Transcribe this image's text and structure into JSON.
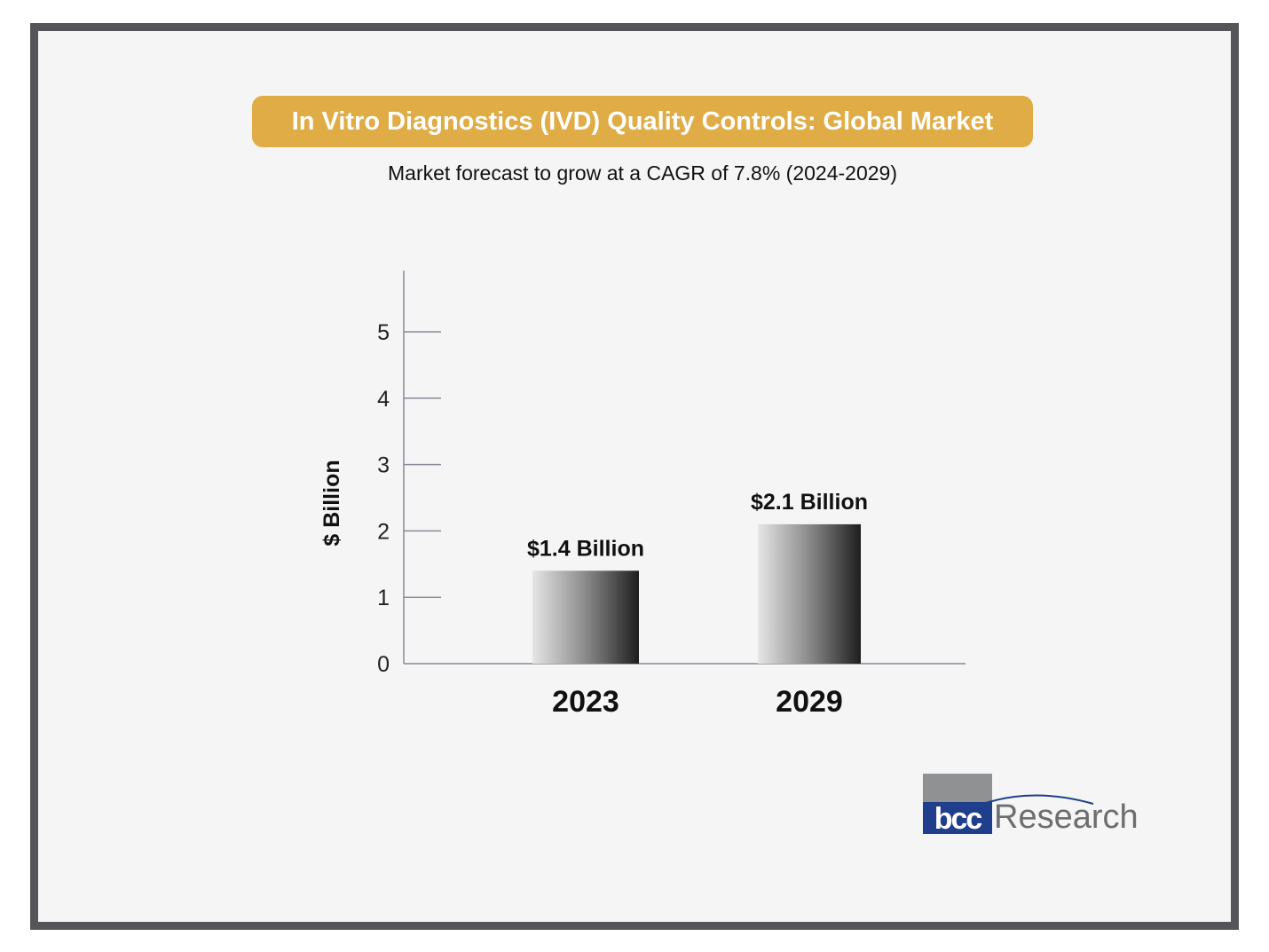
{
  "title": "In Vitro Diagnostics (IVD) Quality Controls: Global Market",
  "subtitle": "Market forecast to grow at a CAGR of 7.8% (2024-2029)",
  "logo": {
    "mark": "bcc",
    "word": "Research"
  },
  "colors": {
    "title_bar": "#e0ac45",
    "frame": "#555559",
    "logo_blue": "#1f3f8c",
    "logo_grey": "#8f9193"
  },
  "chart_data": {
    "type": "bar",
    "categories": [
      "2023",
      "2029"
    ],
    "values": [
      1.4,
      2.1
    ],
    "data_labels": [
      "$1.4 Billion",
      "$2.1 Billion"
    ],
    "title": "In Vitro Diagnostics (IVD) Quality Controls: Global Market",
    "subtitle": "Market forecast to grow at a CAGR of 7.8% (2024-2029)",
    "xlabel": "",
    "ylabel": "$ Billion",
    "ylim": [
      0,
      5
    ],
    "yticks": [
      0,
      1,
      2,
      3,
      4,
      5
    ],
    "grid": false,
    "legend": "none"
  }
}
